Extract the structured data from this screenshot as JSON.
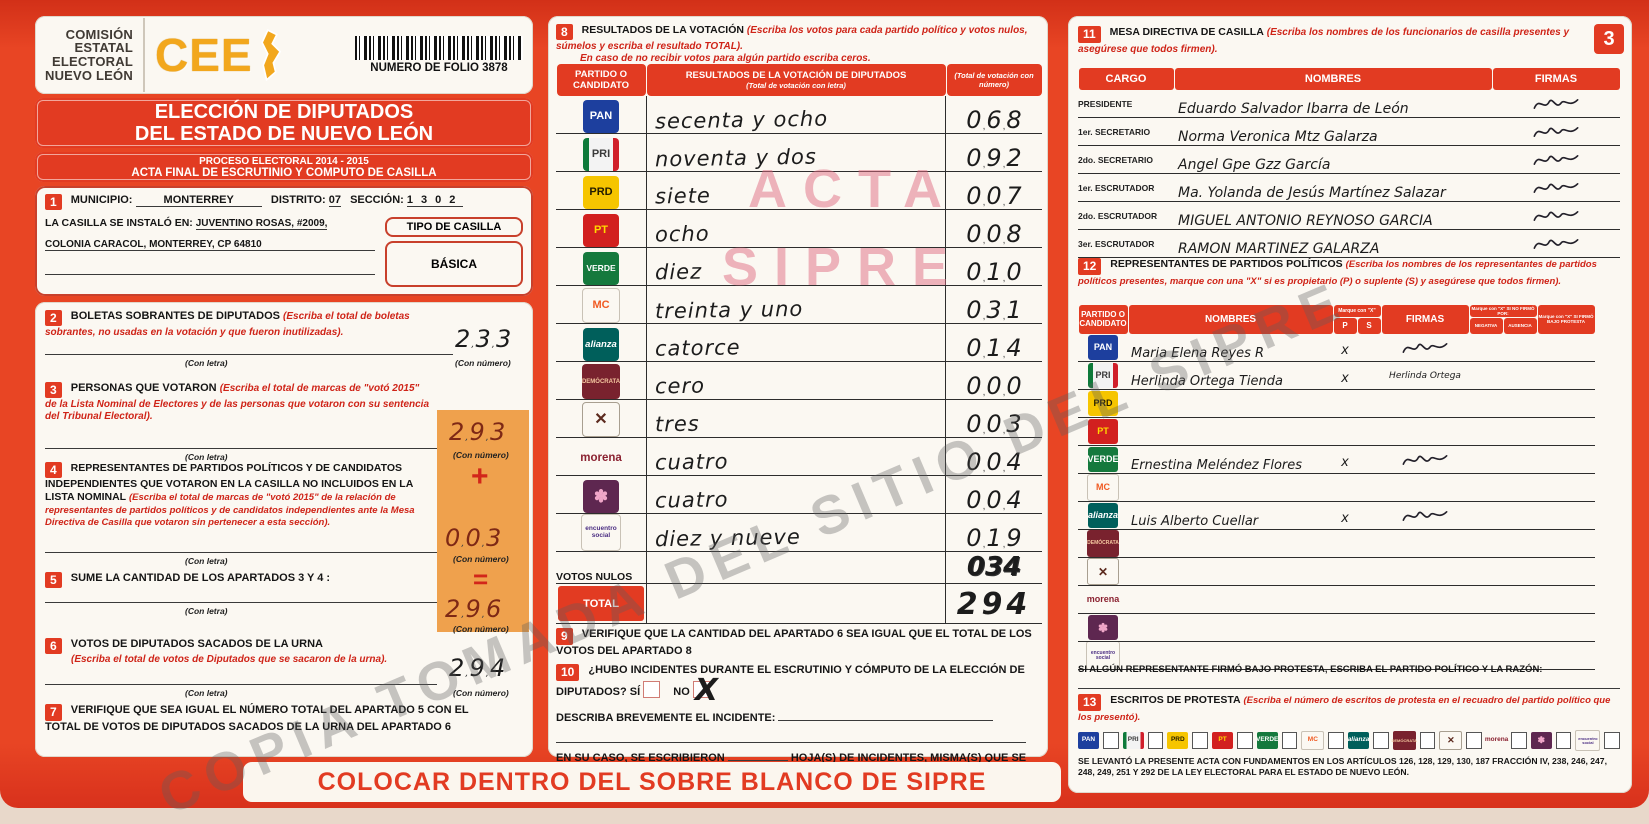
{
  "colors": {
    "red": "#e23b22",
    "orange_highlight": "#efa14d",
    "pen": "#1c1c1c",
    "red_pen": "#7e2815"
  },
  "header": {
    "org": [
      "COMISIÓN",
      "ESTATAL",
      "ELECTORAL",
      "NUEVO LEÓN"
    ],
    "logo_text": "CEE",
    "folio": "NUMERO DE FOLIO 3878",
    "title1": "ELECCIÓN DE DIPUTADOS",
    "title2": "DEL ESTADO DE NUEVO LEÓN",
    "subtitle1": "PROCESO ELECTORAL  2014 - 2015",
    "subtitle2": "ACTA FINAL DE ESCRUTINIO Y COMPUTO DE CASILLA",
    "page_badge": "3"
  },
  "labels": {
    "con_letra": "(Con letra)",
    "con_numero": "(Con número)",
    "plus": "+",
    "equals": "="
  },
  "watermarks": {
    "stamp1": "ACTA",
    "stamp2": "SIPRE",
    "diagonal": "COPIA TOMADA DEL SITIO DEL SIPRE"
  },
  "banner": "COLOCAR DENTRO DEL SOBRE BLANCO DE SIPRE",
  "s1": {
    "num": "1",
    "municipio_label": "MUNICIPIO:",
    "municipio": "MONTERREY",
    "distrito_label": "DISTRITO:",
    "distrito": "07",
    "seccion_label": "SECCIÓN:",
    "seccion": "1302",
    "casilla_label": "LA CASILLA SE INSTALÓ EN:",
    "casilla1": "JUVENTINO ROSAS, #2009,",
    "casilla2": "COLONIA CARACOL, MONTERREY, CP 64810",
    "tipo_label": "TIPO DE CASILLA",
    "tipo": "BÁSICA"
  },
  "s2": {
    "num": "2",
    "title": "BOLETAS SOBRANTES DE DIPUTADOS",
    "note": "(Escriba el total de boletas sobrantes, no usadas en la votación y que fueron inutilizadas).",
    "value": "233"
  },
  "s3": {
    "num": "3",
    "title": "PERSONAS QUE VOTARON",
    "note": "(Escriba el total de marcas de \"votó 2015\" de la Lista Nominal de Electores y de las personas que votaron con su sentencia del Tribunal Electoral).",
    "value": "293"
  },
  "s4": {
    "num": "4",
    "title": "REPRESENTANTES DE PARTIDOS POLÍTICOS Y DE CANDIDATOS INDEPENDIENTES QUE VOTARON EN LA CASILLA NO INCLUIDOS EN LA LISTA NOMINAL",
    "note": "(Escriba el total de marcas de \"votó 2015\" de la relación de representantes de partidos políticos y de candidatos independientes ante la Mesa Directiva de Casilla que votaron sin pertenecer a esta sección).",
    "value": "003"
  },
  "s5": {
    "num": "5",
    "title": "SUME LA CANTIDAD DE LOS APARTADOS  3  Y  4 :",
    "value": "296"
  },
  "s6": {
    "num": "6",
    "title": "VOTOS DE DIPUTADOS SACADOS DE LA URNA",
    "note": "(Escriba el total de votos de Diputados que se sacaron de la urna).",
    "value": "294"
  },
  "s7": {
    "num": "7",
    "title": "VERIFIQUE QUE SEA IGUAL EL NÚMERO TOTAL DEL APARTADO  5  CON EL TOTAL DE VOTOS DE DIPUTADOS SACADOS DE LA URNA DEL APARTADO  6"
  },
  "s8": {
    "num": "8",
    "title": "RESULTADOS DE LA VOTACIÓN",
    "note": "(Escriba los votos para cada partido político y votos nulos, súmelos y escriba el resultado TOTAL).",
    "note2": "En caso de no recibir votos para algún partido escriba ceros.",
    "col1": "PARTIDO O CANDIDATO",
    "col2": "RESULTADOS DE LA VOTACIÓN DE DIPUTADOS",
    "col2b": "(Total de votación con letra)",
    "col3": "(Total de votación con número)",
    "nulos_label": "VOTOS NULOS",
    "total_label": "TOTAL"
  },
  "s9": {
    "num": "9",
    "title": "VERIFIQUE QUE LA CANTIDAD DEL APARTADO  6  SEA IGUAL QUE EL TOTAL DE LOS VOTOS DEL APARTADO  8"
  },
  "s10": {
    "num": "10",
    "q": "¿HUBO INCIDENTES DURANTE EL ESCRUTINIO Y CÓMPUTO DE LA ELECCIÓN DE DIPUTADOS?",
    "si": "SÍ",
    "no": "NO",
    "no_checked": "X",
    "describe": "DESCRIBA BREVEMENTE EL INCIDENTE:",
    "anexo1": "EN SU CASO, SE ESCRIBIERON",
    "anexo2": "HOJA(S) DE INCIDENTES, MISMA(S) QUE SE ANEXA(N) A LA PRESENTE ACTA."
  },
  "s11": {
    "num": "11",
    "title": "MESA DIRECTIVA DE CASILLA",
    "note": "(Escriba los nombres de los funcionarios de casilla presentes y asegúrese que todos firmen).",
    "col1": "CARGO",
    "col2": "NOMBRES",
    "col3": "FIRMAS"
  },
  "s12": {
    "num": "12",
    "title": "REPRESENTANTES DE PARTIDOS POLÍTICOS",
    "note": "(Escriba los nombres de los representantes de partidos políticos presentes, marque con una \"X\" si es propietario (P) o suplente (S) y asegúrese que todos firmen).",
    "col1": "PARTIDO O CANDIDATO",
    "col2": "NOMBRES",
    "marque": "Marque con \"X\"",
    "p": "P",
    "s": "S",
    "firmas": "FIRMAS",
    "no_firmo": "Marque con \"X\" SI NO FIRMÓ POR:",
    "negativa": "NEGATIVA",
    "ausencia": "AUSENCIA",
    "protesta": "Marque con \"X\" SI FIRMÓ BAJO PROTESTA"
  },
  "protest_note": "SI ALGÚN REPRESENTANTE FIRMÓ BAJO PROTESTA, ESCRIBA EL PARTIDO POLÍTICO Y LA RAZÓN:",
  "s13": {
    "num": "13",
    "title": "ESCRITOS DE PROTESTA",
    "note": "(Escriba el número de escritos de protesta en el recuadro del partido político que los presentó)."
  },
  "legal": "SE LEVANTÓ LA PRESENTE ACTA CON FUNDAMENTOS EN LOS ARTÍCULOS 126, 128, 129, 130, 187 FRACCIÓN IV, 238, 246, 247, 248, 249, 251 Y 292 DE LA LEY ELECTORAL PARA EL ESTADO DE NUEVO LEÓN.",
  "parties": [
    {
      "id": "pan",
      "name": "Partido Acción Nacional",
      "abbr": "PAN",
      "bg": "#1d3f9e",
      "fg": "#ffffff"
    },
    {
      "id": "pri",
      "name": "Partido Revolucionario Institucional",
      "abbr": "PRI",
      "bg": "css",
      "fg": "#3a3a3a"
    },
    {
      "id": "prd",
      "name": "Partido de la Revolución Democrática",
      "abbr": "PRD",
      "bg": "#f6c500",
      "fg": "#241d00"
    },
    {
      "id": "pt",
      "name": "Partido del Trabajo",
      "abbr": "PT",
      "bg": "#d2201f",
      "fg": "#ffd900"
    },
    {
      "id": "verde",
      "name": "Partido Verde Ecologista de México",
      "abbr": "VERDE",
      "bg": "#15793d",
      "fg": "#ffffff"
    },
    {
      "id": "mc",
      "name": "Movimiento Ciudadano",
      "abbr": "MC",
      "bg": "css",
      "fg": "#f05a22"
    },
    {
      "id": "na",
      "name": "Nueva Alianza",
      "abbr": "alianza",
      "bg": "#005f5b",
      "fg": "#ffffff"
    },
    {
      "id": "dem",
      "name": "Demócrata",
      "abbr": "DEMÓCRATA",
      "bg": "#79222e",
      "fg": "#f5c8a0"
    },
    {
      "id": "cc",
      "name": "Cruzada Ciudadana",
      "abbr": "✕",
      "bg": "css",
      "fg": "#5c2a1e"
    },
    {
      "id": "morena",
      "name": "morena",
      "abbr": "morena",
      "bg": "css",
      "fg": "#8b2231"
    },
    {
      "id": "hum",
      "name": "Humanista",
      "abbr": "✽",
      "bg": "#5e2750",
      "fg": "#f0a6c8"
    },
    {
      "id": "es",
      "name": "Encuentro Social",
      "abbr": "encuentro social",
      "bg": "css",
      "fg": "#4b2e83"
    }
  ],
  "results": {
    "rows": [
      {
        "party": 0,
        "letra": "secenta y ocho",
        "num": "068"
      },
      {
        "party": 1,
        "letra": "noventa y dos",
        "num": "092"
      },
      {
        "party": 2,
        "letra": "siete",
        "num": "007"
      },
      {
        "party": 3,
        "letra": "ocho",
        "num": "008"
      },
      {
        "party": 4,
        "letra": "diez",
        "num": "010"
      },
      {
        "party": 5,
        "letra": "treinta y uno",
        "num": "031"
      },
      {
        "party": 6,
        "letra": "catorce",
        "num": "014"
      },
      {
        "party": 7,
        "letra": "cero",
        "num": "000"
      },
      {
        "party": 8,
        "letra": "tres",
        "num": "003"
      },
      {
        "party": 9,
        "letra": "cuatro",
        "num": "004"
      },
      {
        "party": 10,
        "letra": "cuatro",
        "num": "004"
      },
      {
        "party": 11,
        "letra": "diez y nueve",
        "num": "019"
      }
    ],
    "nulos": "034",
    "total": "294"
  },
  "mesa": [
    {
      "cargo": "PRESIDENTE",
      "nombre": "Eduardo Salvador Ibarra de León",
      "firma": "scribble"
    },
    {
      "cargo": "1er. SECRETARIO",
      "nombre": "Norma Veronica Mtz Galarza",
      "firma": "scribble"
    },
    {
      "cargo": "2do. SECRETARIO",
      "nombre": "Angel Gpe Gzz García",
      "firma": "scribble"
    },
    {
      "cargo": "1er. ESCRUTADOR",
      "nombre": "Ma. Yolanda de Jesús Martínez Salazar",
      "firma": "scribble"
    },
    {
      "cargo": "2do. ESCRUTADOR",
      "nombre": "MIGUEL ANTONIO REYNOSO GARCIA",
      "firma": "scribble"
    },
    {
      "cargo": "3er. ESCRUTADOR",
      "nombre": "RAMON MARTINEZ GALARZA",
      "firma": "scribble"
    }
  ],
  "reps": [
    {
      "party": 0,
      "nombre": "Maria Elena Reyes R",
      "p": "x",
      "s": "",
      "firma": "scribble",
      "negativa": "",
      "ausencia": "",
      "protesta": ""
    },
    {
      "party": 1,
      "nombre": "Herlinda Ortega Tienda",
      "p": "x",
      "s": "",
      "firma": "Herlinda Ortega",
      "negativa": "",
      "ausencia": "",
      "protesta": ""
    },
    {
      "party": 2,
      "nombre": "",
      "p": "",
      "s": "",
      "firma": "",
      "negativa": "",
      "ausencia": "",
      "protesta": ""
    },
    {
      "party": 3,
      "nombre": "",
      "p": "",
      "s": "",
      "firma": "",
      "negativa": "",
      "ausencia": "",
      "protesta": ""
    },
    {
      "party": 4,
      "nombre": "Ernestina Meléndez Flores",
      "p": "x",
      "s": "",
      "firma": "scribble",
      "negativa": "",
      "ausencia": "",
      "protesta": ""
    },
    {
      "party": 5,
      "nombre": "",
      "p": "",
      "s": "",
      "firma": "",
      "negativa": "",
      "ausencia": "",
      "protesta": ""
    },
    {
      "party": 6,
      "nombre": "Luis Alberto Cuellar",
      "p": "x",
      "s": "",
      "firma": "scribble",
      "negativa": "",
      "ausencia": "",
      "protesta": ""
    },
    {
      "party": 7,
      "nombre": "",
      "p": "",
      "s": "",
      "firma": "",
      "negativa": "",
      "ausencia": "",
      "protesta": ""
    },
    {
      "party": 8,
      "nombre": "",
      "p": "",
      "s": "",
      "firma": "",
      "negativa": "",
      "ausencia": "",
      "protesta": ""
    },
    {
      "party": 9,
      "nombre": "",
      "p": "",
      "s": "",
      "firma": "",
      "negativa": "",
      "ausencia": "",
      "protesta": ""
    },
    {
      "party": 10,
      "nombre": "",
      "p": "",
      "s": "",
      "firma": "",
      "negativa": "",
      "ausencia": "",
      "protesta": ""
    },
    {
      "party": 11,
      "nombre": "",
      "p": "",
      "s": "",
      "firma": "",
      "negativa": "",
      "ausencia": "",
      "protesta": ""
    }
  ]
}
